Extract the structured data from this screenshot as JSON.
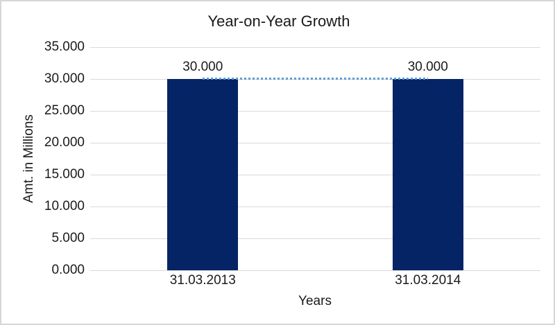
{
  "chart_data": {
    "type": "bar",
    "title": "Year-on-Year Growth",
    "categories": [
      "31.03.2013",
      "31.03.2014"
    ],
    "values": [
      30,
      30
    ],
    "data_labels": [
      "30.000",
      "30.000"
    ],
    "xlabel": "Years",
    "ylabel": "Amt. in Millions",
    "ylim": [
      0,
      35
    ],
    "yticks": [
      0,
      5,
      10,
      15,
      20,
      25,
      30,
      35
    ],
    "ytick_labels": [
      "0.000",
      "5.000",
      "10.000",
      "15.000",
      "20.000",
      "25.000",
      "30.000",
      "35.000"
    ],
    "grid": true,
    "legend_position": "none",
    "trendline": {
      "style": "dotted",
      "points": [
        30,
        30
      ]
    }
  },
  "colors": {
    "bar": "#042466",
    "trendline": "#5B9BD5",
    "gridline": "#D9D9D9",
    "frame_border": "#D6D6D6",
    "text": "#1A1A1A",
    "background": "#FFFFFF"
  }
}
